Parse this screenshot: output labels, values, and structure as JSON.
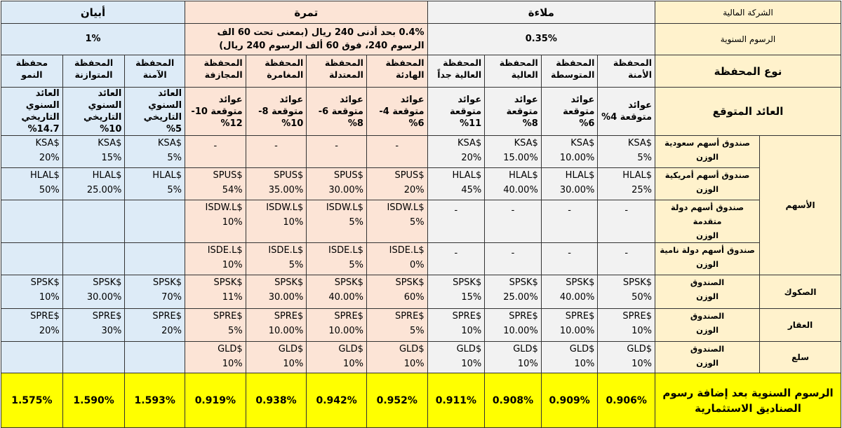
{
  "header": {
    "company_label": "الشركة المالية",
    "companies": [
      "ملاءة",
      "تمرة",
      "أبيان"
    ]
  },
  "fees": {
    "label": "الرسوم السنوية",
    "malaa": "0.35%",
    "tamra": "0.4% بحد أدنى 240 ريال (بمعنى تحت 60 الف الرسوم 240، فوق 60 ألف الرسوم 240 ريال)",
    "abyan": "1%"
  },
  "portfolio_type": {
    "label": "نوع المحفظة",
    "cols": [
      "المحفظة الأمنة",
      "المحفظة المتوسطة",
      "المحفظة العالية",
      "المحفظة العالية جداً",
      "المحفظة الهادئة",
      "المحفظة المعتدلة",
      "المحفظة المغامرة",
      "المحفظة المجازفة",
      "المحفظة الآمنة",
      "المحفظة المتوازنة",
      "محفظة النمو"
    ]
  },
  "expected_return": {
    "label": "العائد المتوقع",
    "cols": [
      "عوائد متوقعة 4%",
      "عوائد متوقعة 6%",
      "عوائد متوقعة 8%",
      "عوائد متوقعة 11%",
      "عوائد متوقعة 4-6%",
      "عوائد متوقعة 6-8%",
      "عوائد متوقعة 8-10%",
      "عوائد متوقعة 10-12%",
      "العائد السنوي التاريخي 5%",
      "العائد السنوي التاريخي 10%",
      "العائد السنوي التاريخي 14.7%"
    ]
  },
  "assets": {
    "stocks": "الأسهم",
    "sukuk": "الصكوك",
    "realestate": "العقار",
    "commodities": "سلع"
  },
  "rows": [
    {
      "fund": "صندوق أسهم سعودية",
      "sub": "الوزن",
      "cells": [
        [
          "$KSA",
          "5%"
        ],
        [
          "$KSA",
          "10.00%"
        ],
        [
          "$KSA",
          "15.00%"
        ],
        [
          "$KSA",
          "20%"
        ],
        [
          "-",
          ""
        ],
        [
          "-",
          ""
        ],
        [
          "-",
          ""
        ],
        [
          "-",
          ""
        ],
        [
          "$KSA",
          "5%"
        ],
        [
          "$KSA",
          "15%"
        ],
        [
          "$KSA",
          "20%"
        ]
      ]
    },
    {
      "fund": "صندوق أسهم أمريكية",
      "sub": "الوزن",
      "cells": [
        [
          "$HLAL",
          "25%"
        ],
        [
          "$HLAL",
          "30.00%"
        ],
        [
          "$HLAL",
          "40.00%"
        ],
        [
          "$HLAL",
          "45%"
        ],
        [
          "$SPUS",
          "20%"
        ],
        [
          "$SPUS",
          "30.00%"
        ],
        [
          "$SPUS",
          "35.00%"
        ],
        [
          "$SPUS",
          "54%"
        ],
        [
          "$HLAL",
          "5%"
        ],
        [
          "$HLAL",
          "25.00%"
        ],
        [
          "$HLAL",
          "50%"
        ]
      ]
    },
    {
      "fund": "صندوق أسهم دولة متقدمة",
      "sub": "الوزن",
      "cells": [
        [
          "-",
          ""
        ],
        [
          "-",
          ""
        ],
        [
          "-",
          ""
        ],
        [
          "-",
          ""
        ],
        [
          "$ISDW.L",
          "5%"
        ],
        [
          "$ISDW.L",
          "5%"
        ],
        [
          "$ISDW.L",
          "10%"
        ],
        [
          "$ISDW.L",
          "10%"
        ],
        [
          "",
          ""
        ],
        [
          "",
          ""
        ],
        [
          "",
          ""
        ]
      ]
    },
    {
      "fund": "صندوق أسهم دولة نامية",
      "sub": "الوزن",
      "cells": [
        [
          "-",
          ""
        ],
        [
          "-",
          ""
        ],
        [
          "-",
          ""
        ],
        [
          "-",
          ""
        ],
        [
          "$ISDE.L",
          "0%"
        ],
        [
          "$ISDE.L",
          "5%"
        ],
        [
          "$ISDE.L",
          "5%"
        ],
        [
          "$ISDE.L",
          "10%"
        ],
        [
          "",
          ""
        ],
        [
          "",
          ""
        ],
        [
          "",
          ""
        ]
      ]
    },
    {
      "fund": "الصندوق",
      "sub": "الوزن",
      "cells": [
        [
          "$SPSK",
          "50%"
        ],
        [
          "$SPSK",
          "40.00%"
        ],
        [
          "$SPSK",
          "25.00%"
        ],
        [
          "$SPSK",
          "15%"
        ],
        [
          "$SPSK",
          "60%"
        ],
        [
          "$SPSK",
          "40.00%"
        ],
        [
          "$SPSK",
          "30.00%"
        ],
        [
          "$SPSK",
          "11%"
        ],
        [
          "$SPSK",
          "70%"
        ],
        [
          "$SPSK",
          "30.00%"
        ],
        [
          "$SPSK",
          "10%"
        ]
      ]
    },
    {
      "fund": "الصندوق",
      "sub": "الوزن",
      "cells": [
        [
          "$SPRE",
          "10%"
        ],
        [
          "$SPRE",
          "10.00%"
        ],
        [
          "$SPRE",
          "10.00%"
        ],
        [
          "$SPRE",
          "10%"
        ],
        [
          "$SPRE",
          "5%"
        ],
        [
          "$SPRE",
          "10.00%"
        ],
        [
          "$SPRE",
          "10.00%"
        ],
        [
          "$SPRE",
          "5%"
        ],
        [
          "$SPRE",
          "20%"
        ],
        [
          "$SPRE",
          "30%"
        ],
        [
          "$SPRE",
          "20%"
        ]
      ]
    },
    {
      "fund": "الصندوق",
      "sub": "الوزن",
      "cells": [
        [
          "$GLD",
          "10%"
        ],
        [
          "$GLD",
          "10%"
        ],
        [
          "$GLD",
          "10%"
        ],
        [
          "$GLD",
          "10%"
        ],
        [
          "$GLD",
          "10%"
        ],
        [
          "$GLD",
          "10%"
        ],
        [
          "$GLD",
          "10%"
        ],
        [
          "$GLD",
          "10%"
        ],
        [
          "",
          ""
        ],
        [
          "",
          ""
        ],
        [
          "",
          ""
        ]
      ]
    }
  ],
  "total": {
    "label": "الرسوم السنوية بعد إضافة رسوم الصناديق الاستثمارية",
    "values": [
      "0.906%",
      "0.909%",
      "0.908%",
      "0.911%",
      "0.952%",
      "0.942%",
      "0.938%",
      "0.919%",
      "1.593%",
      "1.590%",
      "1.575%"
    ]
  },
  "colors": {
    "malaa_bg": "#f2f2f2",
    "tamra_bg": "#fce4d6",
    "abyan_bg": "#ddebf7",
    "label_bg": "#fff2cc",
    "total_bg": "#ffff00"
  }
}
